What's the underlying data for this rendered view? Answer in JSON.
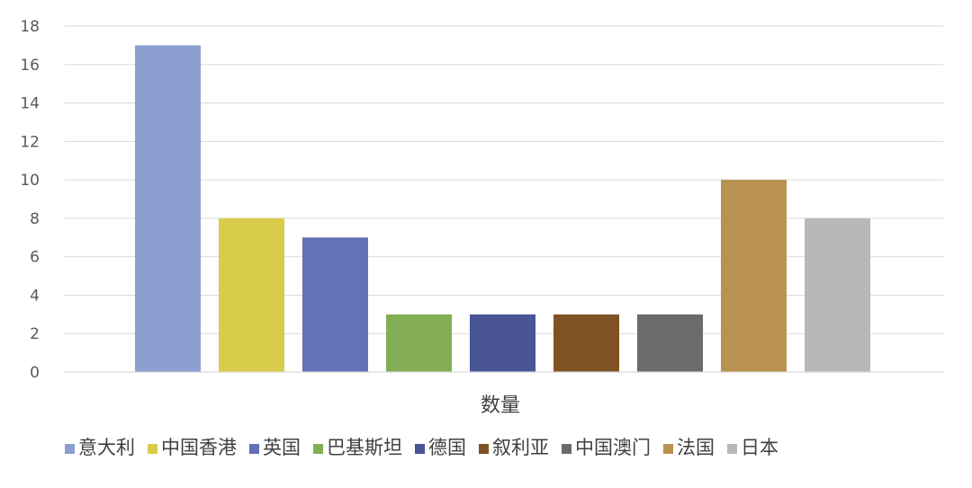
{
  "chart_data": {
    "type": "bar",
    "title": "",
    "xlabel": "数量",
    "ylabel": "",
    "ylim": [
      0,
      18
    ],
    "yticks": [
      0,
      2,
      4,
      6,
      8,
      10,
      12,
      14,
      16,
      18
    ],
    "grid": true,
    "legend_position": "bottom",
    "series": [
      {
        "name": "意大利",
        "values": [
          17
        ],
        "color": "#8C9FD1"
      },
      {
        "name": "中国香港",
        "values": [
          8
        ],
        "color": "#D9CC4A"
      },
      {
        "name": "英国",
        "values": [
          7
        ],
        "color": "#6471B6"
      },
      {
        "name": "巴基斯坦",
        "values": [
          3
        ],
        "color": "#83AE55"
      },
      {
        "name": "德国",
        "values": [
          3
        ],
        "color": "#4A5596"
      },
      {
        "name": "叙利亚",
        "values": [
          3
        ],
        "color": "#7F5223"
      },
      {
        "name": "中国澳门",
        "values": [
          3
        ],
        "color": "#6B6B6B"
      },
      {
        "name": "法国",
        "values": [
          10
        ],
        "color": "#B99150"
      },
      {
        "name": "日本",
        "values": [
          8
        ],
        "color": "#B8B8B8"
      }
    ]
  }
}
